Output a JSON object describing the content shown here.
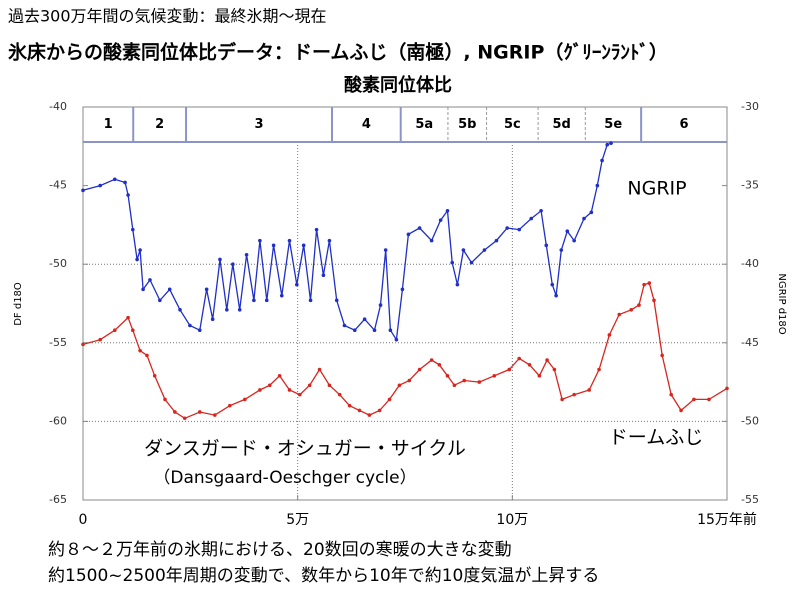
{
  "header": {
    "line1": "過去300万年間の気候変動：最終氷期〜現在",
    "line2": "氷床からの酸素同位体比データ：ドームふじ（南極）, NGRIP（ｸﾞﾘｰﾝﾗﾝﾄﾞ）"
  },
  "chart_data": {
    "type": "line",
    "title": "酸素同位体比",
    "y_label": "DF d18O",
    "y2_label": "NGRIP d18O",
    "xlim": [
      0,
      150000
    ],
    "xticks": [
      0,
      {
        "value": 50000,
        "label": "5万"
      },
      {
        "value": 100000,
        "label": "10万"
      },
      {
        "value": 150000,
        "label": "15万年前"
      }
    ],
    "ylim": [
      -65,
      -40
    ],
    "yticks": [
      -40,
      -45,
      -50,
      -55,
      -60,
      -65
    ],
    "y2lim": [
      -55,
      -30
    ],
    "y2ticks": [
      -30,
      -35,
      -40,
      -45,
      -50,
      -55
    ],
    "grid": true,
    "stages": [
      {
        "label": "1",
        "start": 0,
        "end": 11700
      },
      {
        "label": "2",
        "start": 11700,
        "end": 24000
      },
      {
        "label": "3",
        "start": 24000,
        "end": 58000
      },
      {
        "label": "4",
        "start": 58000,
        "end": 74000
      },
      {
        "label": "5a",
        "start": 74000,
        "end": 85000
      },
      {
        "label": "5b",
        "start": 85000,
        "end": 94000
      },
      {
        "label": "5c",
        "start": 94000,
        "end": 106000
      },
      {
        "label": "5d",
        "start": 106000,
        "end": 117000
      },
      {
        "label": "5e",
        "start": 117000,
        "end": 130000
      },
      {
        "label": "6",
        "start": 130000,
        "end": 150000
      }
    ],
    "series": [
      {
        "name": "NGRIP",
        "color": "#1f2fc8",
        "axis": "y2",
        "x": [
          0,
          4000,
          7400,
          9800,
          10500,
          11600,
          12600,
          13300,
          14000,
          15600,
          17900,
          20200,
          22600,
          24900,
          27200,
          28800,
          30200,
          31900,
          33500,
          34900,
          36500,
          38100,
          39800,
          41200,
          42800,
          44400,
          46300,
          48100,
          49800,
          51400,
          53000,
          54400,
          56000,
          57400,
          59100,
          60900,
          63300,
          65600,
          67900,
          69300,
          70500,
          71600,
          73000,
          74400,
          75800,
          78400,
          81200,
          83300,
          84900,
          86000,
          87200,
          88600,
          90500,
          93500,
          96300,
          98800,
          101600,
          104400,
          106700,
          107900,
          109300,
          110200,
          111400,
          112800,
          114400,
          116700,
          118400,
          119800,
          120900,
          122100,
          123000
        ],
        "values": [
          -35.3,
          -35.0,
          -34.6,
          -34.8,
          -35.6,
          -37.8,
          -39.7,
          -39.1,
          -41.6,
          -41.0,
          -42.3,
          -41.6,
          -42.9,
          -43.9,
          -44.2,
          -41.6,
          -43.5,
          -39.7,
          -42.9,
          -40.0,
          -42.9,
          -39.4,
          -42.3,
          -38.5,
          -42.3,
          -38.8,
          -42.0,
          -38.5,
          -41.3,
          -38.8,
          -42.3,
          -37.8,
          -40.7,
          -38.5,
          -42.3,
          -43.9,
          -44.2,
          -43.5,
          -44.2,
          -42.6,
          -39.1,
          -44.2,
          -44.8,
          -41.6,
          -38.1,
          -37.7,
          -38.5,
          -37.2,
          -36.6,
          -39.9,
          -41.3,
          -39.1,
          -39.9,
          -39.1,
          -38.5,
          -37.7,
          -37.8,
          -37.1,
          -36.6,
          -38.8,
          -41.3,
          -42.0,
          -39.1,
          -37.9,
          -38.5,
          -37.1,
          -36.7,
          -35.0,
          -33.4,
          -32.4,
          -32.3
        ]
      },
      {
        "name": "ドームふじ",
        "color": "#d8261e",
        "x": [
          0,
          4000,
          7400,
          10500,
          11600,
          13300,
          14900,
          16700,
          19100,
          21400,
          23700,
          27200,
          30700,
          34200,
          37700,
          41200,
          43500,
          45800,
          48100,
          50500,
          52800,
          55100,
          57400,
          59800,
          62100,
          64400,
          66700,
          69100,
          71400,
          73700,
          76000,
          78400,
          81200,
          83000,
          84900,
          86500,
          88800,
          92300,
          95800,
          99300,
          101600,
          104000,
          106300,
          108100,
          109800,
          111600,
          114400,
          117900,
          120200,
          122600,
          124900,
          127700,
          129500,
          130700,
          131900,
          133000,
          134900,
          137000,
          139300,
          142300,
          145800,
          150000
        ],
        "values": [
          -55.1,
          -54.8,
          -54.2,
          -53.4,
          -54.2,
          -55.5,
          -55.8,
          -57.1,
          -58.6,
          -59.4,
          -59.8,
          -59.4,
          -59.6,
          -59.0,
          -58.6,
          -58.0,
          -57.7,
          -57.1,
          -58.0,
          -58.3,
          -57.7,
          -56.7,
          -57.7,
          -58.3,
          -59.0,
          -59.3,
          -59.6,
          -59.3,
          -58.6,
          -57.7,
          -57.4,
          -56.7,
          -56.1,
          -56.4,
          -57.1,
          -57.7,
          -57.4,
          -57.5,
          -57.1,
          -56.7,
          -56.0,
          -56.4,
          -57.1,
          -56.1,
          -56.7,
          -58.6,
          -58.3,
          -58.0,
          -56.7,
          -54.5,
          -53.2,
          -52.9,
          -52.6,
          -51.3,
          -51.2,
          -52.3,
          -55.8,
          -58.3,
          -59.3,
          -58.6,
          -58.6,
          -57.9
        ]
      }
    ],
    "annotations": [
      "ダンスガード・オシュガー・サイクル",
      "（Dansgaard-Oeschger cycle）"
    ]
  },
  "footer": {
    "line1": "約８〜２万年前の氷期における、20数回の寒暖の大きな変動",
    "line2": "約1500~2500年周期の変動で、数年から10年で約10度気温が上昇する"
  }
}
